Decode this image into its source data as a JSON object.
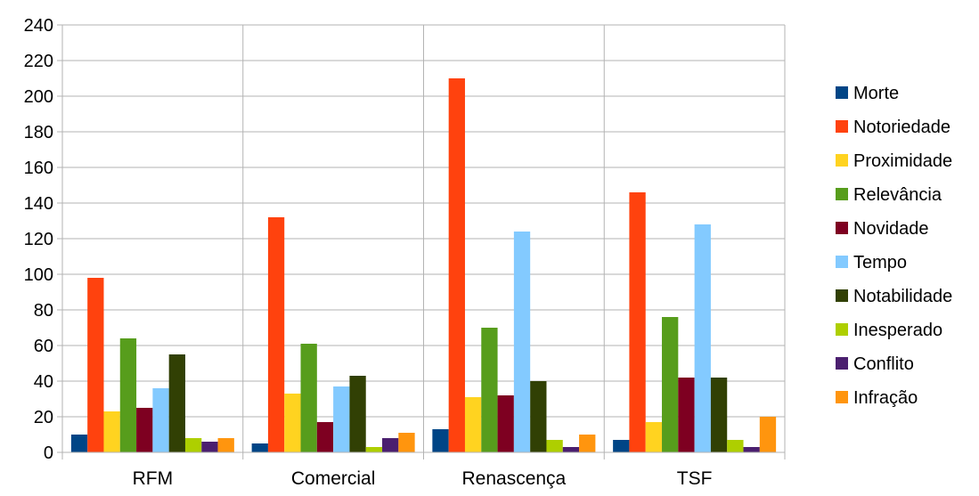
{
  "chart_data": {
    "type": "bar",
    "categories": [
      "RFM",
      "Comercial",
      "Renascença",
      "TSF"
    ],
    "series": [
      {
        "name": "Morte",
        "color": "#004586",
        "values": [
          10,
          5,
          13,
          7
        ]
      },
      {
        "name": "Notoriedade",
        "color": "#ff420e",
        "values": [
          98,
          132,
          210,
          146
        ]
      },
      {
        "name": "Proximidade",
        "color": "#ffd320",
        "values": [
          23,
          33,
          31,
          17
        ]
      },
      {
        "name": "Relevância",
        "color": "#579d1c",
        "values": [
          64,
          61,
          70,
          76
        ]
      },
      {
        "name": "Novidade",
        "color": "#7e0021",
        "values": [
          25,
          17,
          32,
          42
        ]
      },
      {
        "name": "Tempo",
        "color": "#83caff",
        "values": [
          36,
          37,
          124,
          128
        ]
      },
      {
        "name": "Notabilidade",
        "color": "#314004",
        "values": [
          55,
          43,
          40,
          42
        ]
      },
      {
        "name": "Inesperado",
        "color": "#aecf00",
        "values": [
          8,
          3,
          7,
          7
        ]
      },
      {
        "name": "Conflito",
        "color": "#4b1f6f",
        "values": [
          6,
          8,
          3,
          3
        ]
      },
      {
        "name": "Infração",
        "color": "#ff950e",
        "values": [
          8,
          11,
          10,
          20
        ]
      }
    ],
    "ylim": [
      0,
      240
    ],
    "yticks": [
      0,
      20,
      40,
      60,
      80,
      100,
      120,
      140,
      160,
      180,
      200,
      220,
      240
    ],
    "grid": true,
    "legend_position": "right"
  }
}
